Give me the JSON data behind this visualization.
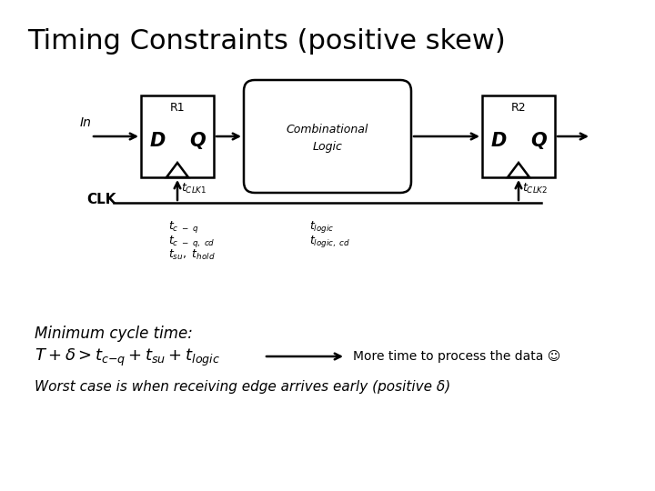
{
  "title": "Timing Constraints (positive skew)",
  "title_fontsize": 22,
  "title_fontweight": "normal",
  "bg_color": "#ffffff",
  "text_color": "#000000",
  "line1_label": "Minimum cycle time:",
  "arrow_label": "More time to process the data ☺",
  "bottom_label": "Worst case is when receiving edge arrives early (positive δ)",
  "r1_label": "R1",
  "r2_label": "R2",
  "clk_label": "CLK",
  "in_label": "In",
  "cl_line1": "Combinational",
  "cl_line2": "Logic",
  "tclk1_label": "t_{CLK1}",
  "tclk2_label": "t_{CLK2}",
  "ann_left_1": "t_{c - q}",
  "ann_left_2": "t_{c - q, cd}",
  "ann_left_3": "t_{su}, t_{hold}",
  "ann_right_1": "t_{logic}",
  "ann_right_2": "t_{logic, cd}",
  "diagram_xlim": [
    0,
    10
  ],
  "diagram_ylim": [
    0,
    10
  ],
  "lw": 1.8
}
